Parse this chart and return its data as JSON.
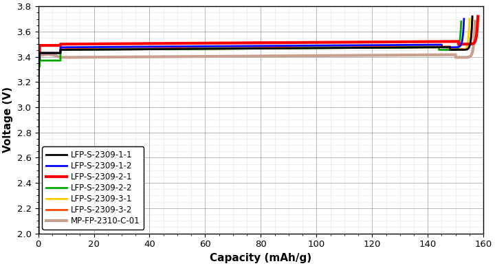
{
  "xlabel": "Capacity (mAh/g)",
  "ylabel": "Voltage (V)",
  "xlim": [
    0,
    160
  ],
  "ylim": [
    2.0,
    3.8
  ],
  "xticks": [
    0,
    20,
    40,
    60,
    80,
    100,
    120,
    140,
    160
  ],
  "yticks": [
    2.0,
    2.2,
    2.4,
    2.6,
    2.8,
    3.0,
    3.2,
    3.4,
    3.6,
    3.8
  ],
  "series": [
    {
      "label": "LFP-S-2309-1-1",
      "color": "#000000",
      "linewidth": 2.0,
      "plateau_v": 3.455,
      "end_v": 3.72,
      "capacity": 156,
      "drop_start": 148,
      "initial_bump": 3.38,
      "drop_steepness": 18
    },
    {
      "label": "LFP-S-2309-1-2",
      "color": "#0000ff",
      "linewidth": 2.0,
      "plateau_v": 3.475,
      "end_v": 3.7,
      "capacity": 153,
      "drop_start": 145,
      "initial_bump": 3.38,
      "drop_steepness": 18
    },
    {
      "label": "LFP-S-2309-2-1",
      "color": "#ff0000",
      "linewidth": 3.0,
      "plateau_v": 3.5,
      "end_v": 3.72,
      "capacity": 158,
      "drop_start": 151,
      "initial_bump": 3.44,
      "drop_steepness": 16
    },
    {
      "label": "LFP-S-2309-2-2",
      "color": "#00aa00",
      "linewidth": 2.0,
      "plateau_v": 3.455,
      "end_v": 3.68,
      "capacity": 152,
      "drop_start": 144,
      "initial_bump": 3.32,
      "drop_steepness": 18
    },
    {
      "label": "LFP-S-2309-3-1",
      "color": "#ffcc00",
      "linewidth": 2.0,
      "plateau_v": 3.455,
      "end_v": 3.7,
      "capacity": 155,
      "drop_start": 147,
      "initial_bump": 3.38,
      "drop_steepness": 18
    },
    {
      "label": "LFP-S-2309-3-2",
      "color": "#ff4400",
      "linewidth": 2.0,
      "plateau_v": 3.46,
      "end_v": 3.71,
      "capacity": 156,
      "drop_start": 148,
      "initial_bump": 3.38,
      "drop_steepness": 17
    },
    {
      "label": "MP-FP-2310-C-01",
      "color": "#c8a090",
      "linewidth": 3.0,
      "plateau_v": 3.395,
      "end_v": 3.68,
      "capacity": 157,
      "drop_start": 150,
      "initial_bump": 3.38,
      "drop_steepness": 14
    }
  ],
  "background_color": "#ffffff",
  "grid_major_color": "#999999",
  "grid_minor_color": "#cccccc",
  "legend_fontsize": 8.5,
  "axis_fontsize": 11,
  "tick_fontsize": 9.5
}
